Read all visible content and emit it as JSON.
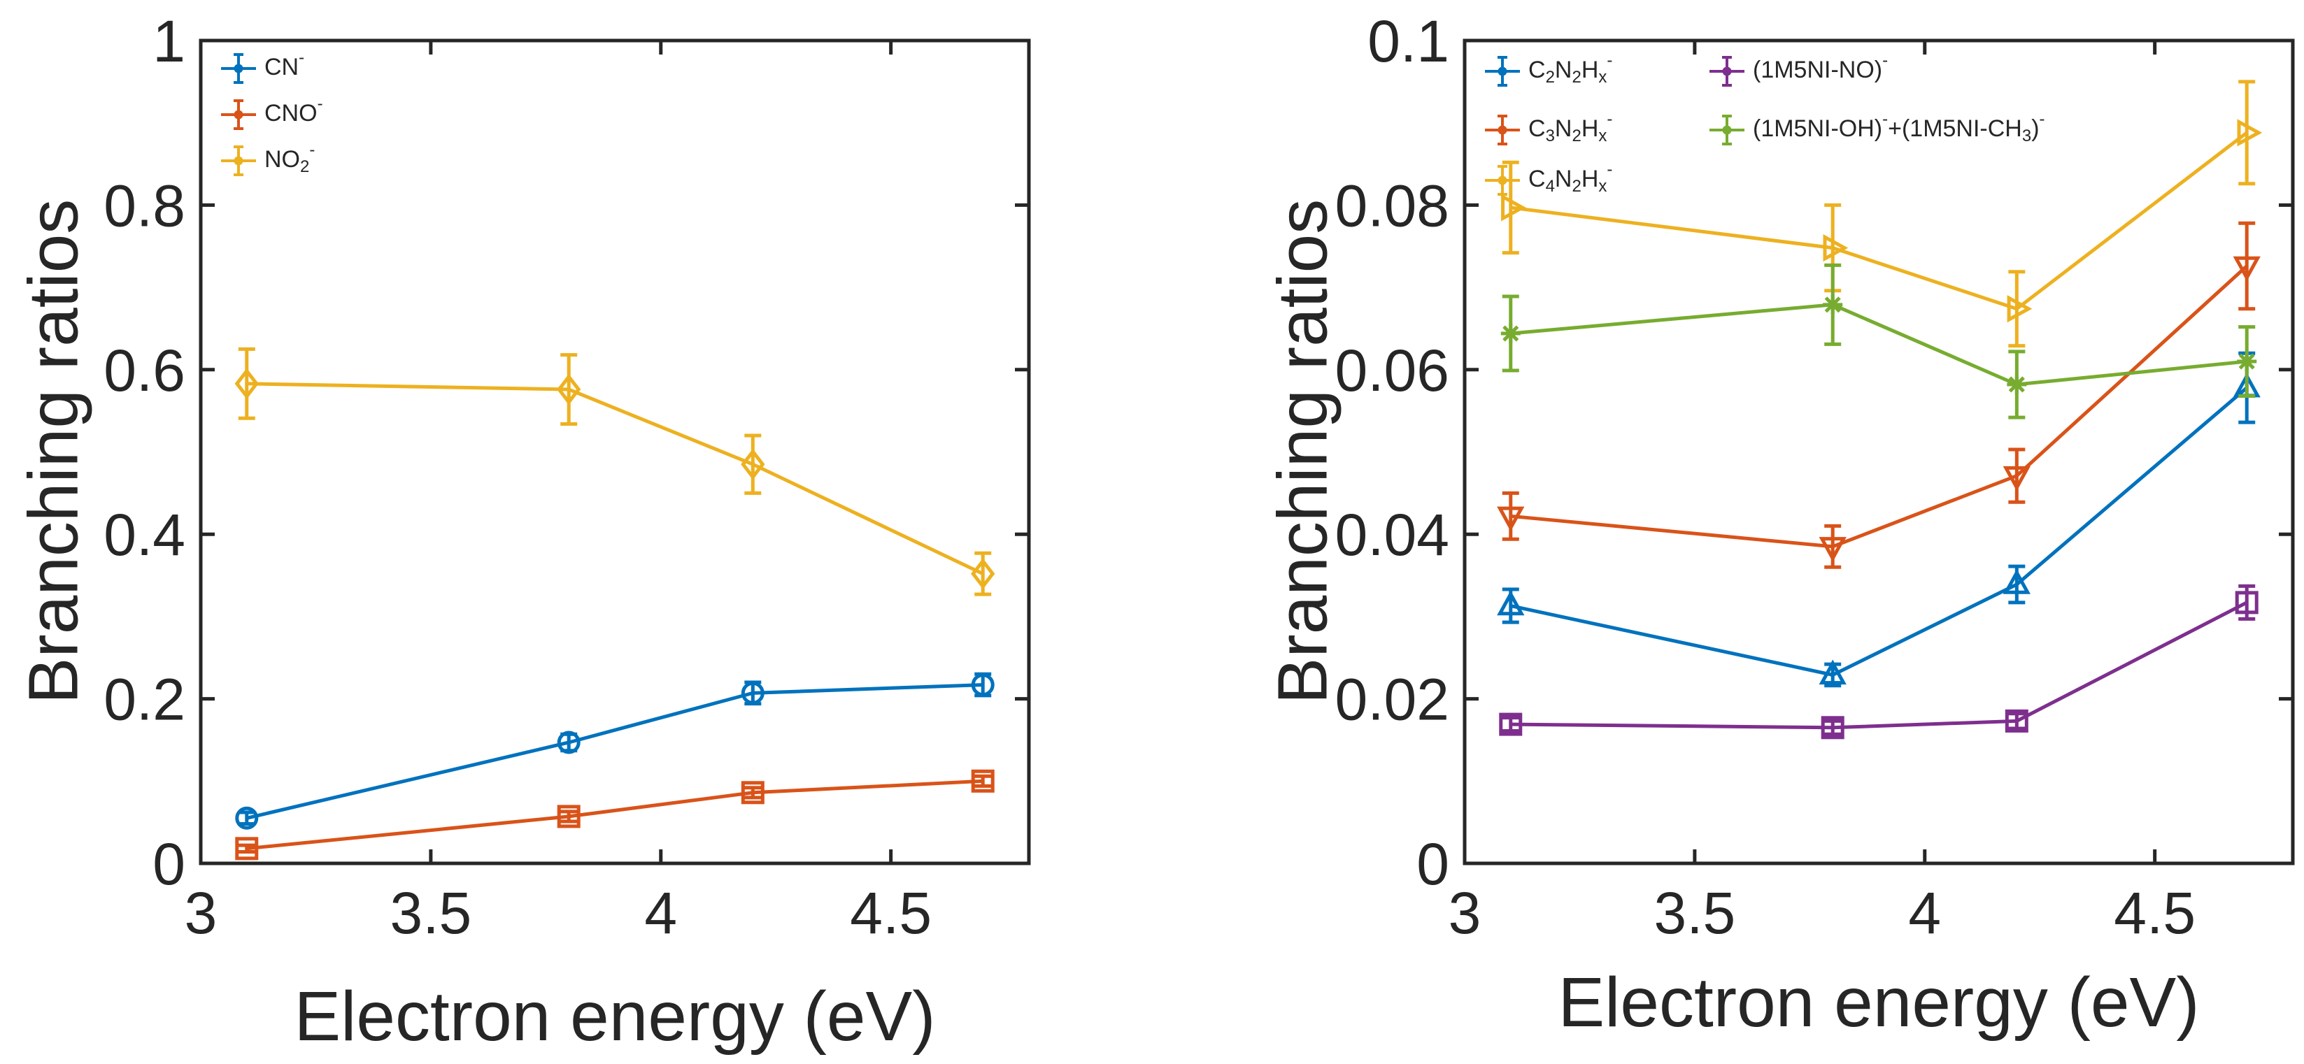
{
  "chart_data": [
    {
      "type": "line",
      "xlabel": "Electron energy (eV)",
      "ylabel": "Branching ratios",
      "xlim": [
        3,
        4.8
      ],
      "ylim": [
        0,
        1
      ],
      "xticks": [
        3,
        3.5,
        4,
        4.5
      ],
      "xtick_labels": [
        "3",
        "3.5",
        "4",
        "4.5"
      ],
      "yticks": [
        0,
        0.2,
        0.4,
        0.6,
        0.8,
        1
      ],
      "ytick_labels": [
        "0",
        "0.2",
        "0.4",
        "0.6",
        "0.8",
        "1"
      ],
      "legend_position": "top-left",
      "x": [
        3.1,
        3.8,
        4.2,
        4.7
      ],
      "series": [
        {
          "name": "CN",
          "sup": "-",
          "color": "#0072BD",
          "marker": "circle",
          "legend_parts": [
            {
              "t": "CN"
            },
            {
              "t": "-",
              "v": "sup"
            }
          ],
          "values": [
            0.055,
            0.147,
            0.207,
            0.217
          ],
          "errors": [
            0.007,
            0.01,
            0.013,
            0.013
          ]
        },
        {
          "name": "CNO",
          "sup": "-",
          "color": "#D95319",
          "marker": "square",
          "legend_parts": [
            {
              "t": "CNO"
            },
            {
              "t": "-",
              "v": "sup"
            }
          ],
          "values": [
            0.018,
            0.057,
            0.086,
            0.1
          ],
          "errors": [
            0.004,
            0.006,
            0.006,
            0.006
          ]
        },
        {
          "name": "NO2",
          "sup": "-",
          "color": "#EDB120",
          "marker": "diamond",
          "legend_parts": [
            {
              "t": "NO"
            },
            {
              "t": "2",
              "v": "sub"
            },
            {
              "t": "-",
              "v": "sup"
            }
          ],
          "values": [
            0.583,
            0.576,
            0.485,
            0.352
          ],
          "errors": [
            0.042,
            0.042,
            0.035,
            0.025
          ]
        }
      ]
    },
    {
      "type": "line",
      "xlabel": "Electron energy (eV)",
      "ylabel": "Branching ratios",
      "xlim": [
        3,
        4.8
      ],
      "ylim": [
        0,
        0.1
      ],
      "xticks": [
        3,
        3.5,
        4,
        4.5
      ],
      "xtick_labels": [
        "3",
        "3.5",
        "4",
        "4.5"
      ],
      "yticks": [
        0,
        0.02,
        0.04,
        0.06,
        0.08,
        0.1
      ],
      "ytick_labels": [
        "0",
        "0.02",
        "0.04",
        "0.06",
        "0.08",
        "0.1"
      ],
      "legend_position": "top-left",
      "x": [
        3.1,
        3.8,
        4.2,
        4.7
      ],
      "series": [
        {
          "name": "C2N2Hx-",
          "color": "#0072BD",
          "marker": "triangle-up",
          "legend_parts": [
            {
              "t": "C"
            },
            {
              "t": "2",
              "v": "sub"
            },
            {
              "t": "N"
            },
            {
              "t": "2",
              "v": "sub"
            },
            {
              "t": "H"
            },
            {
              "t": "x",
              "v": "sub"
            },
            {
              "t": "-",
              "v": "sup"
            }
          ],
          "values": [
            0.0313,
            0.0229,
            0.0339,
            0.0578
          ],
          "errors": [
            0.002,
            0.0013,
            0.0022,
            0.0042
          ]
        },
        {
          "name": "C3N2Hx-",
          "color": "#D95319",
          "marker": "triangle-down",
          "legend_parts": [
            {
              "t": "C"
            },
            {
              "t": "3",
              "v": "sub"
            },
            {
              "t": "N"
            },
            {
              "t": "2",
              "v": "sub"
            },
            {
              "t": "H"
            },
            {
              "t": "x",
              "v": "sub"
            },
            {
              "t": "-",
              "v": "sup"
            }
          ],
          "values": [
            0.0422,
            0.0385,
            0.0471,
            0.0726
          ],
          "errors": [
            0.0028,
            0.0025,
            0.0032,
            0.0052
          ]
        },
        {
          "name": "C4N2Hx-",
          "color": "#EDB120",
          "marker": "triangle-right",
          "legend_parts": [
            {
              "t": "C"
            },
            {
              "t": "4",
              "v": "sub"
            },
            {
              "t": "N"
            },
            {
              "t": "2",
              "v": "sub"
            },
            {
              "t": "H"
            },
            {
              "t": "x",
              "v": "sub"
            },
            {
              "t": "-",
              "v": "sup"
            }
          ],
          "values": [
            0.0797,
            0.0748,
            0.0674,
            0.0888
          ],
          "errors": [
            0.0055,
            0.0052,
            0.0045,
            0.0062
          ]
        },
        {
          "name": "(1M5NI-NO)-",
          "color": "#7E2F8E",
          "marker": "square",
          "legend_parts": [
            {
              "t": "(1M5NI-NO)"
            },
            {
              "t": "-",
              "v": "sup"
            }
          ],
          "values": [
            0.0169,
            0.0165,
            0.0173,
            0.0317
          ],
          "errors": [
            0.0008,
            0.0008,
            0.0009,
            0.002
          ]
        },
        {
          "name": "(1M5NI-OH)-+(1M5NI-CH3)-",
          "color": "#77AC30",
          "marker": "asterisk",
          "legend_parts": [
            {
              "t": "(1M5NI-OH)"
            },
            {
              "t": "-",
              "v": "sup"
            },
            {
              "t": "+(1M5NI-CH"
            },
            {
              "t": "3",
              "v": "sub"
            },
            {
              "t": ")"
            },
            {
              "t": "-",
              "v": "sup"
            }
          ],
          "values": [
            0.0644,
            0.0679,
            0.0582,
            0.061
          ],
          "errors": [
            0.0045,
            0.0048,
            0.004,
            0.0042
          ]
        }
      ]
    }
  ]
}
